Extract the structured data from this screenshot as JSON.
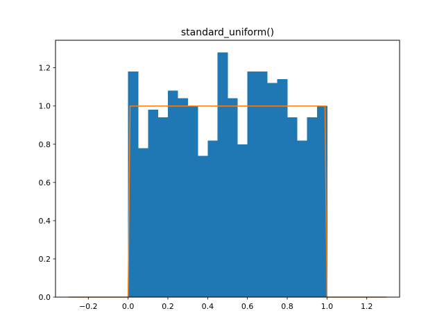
{
  "chart_data": {
    "type": "bar",
    "title": "standard_uniform()",
    "xlabel": "",
    "ylabel": "",
    "xlim": [
      -0.365,
      1.365
    ],
    "ylim": [
      0,
      1.344
    ],
    "grid": false,
    "xticks": [
      -0.2,
      0.0,
      0.2,
      0.4,
      0.6,
      0.8,
      1.0,
      1.2
    ],
    "xtick_labels": [
      "−0.2",
      "0.0",
      "0.2",
      "0.4",
      "0.6",
      "0.8",
      "1.0",
      "1.2"
    ],
    "yticks": [
      0.0,
      0.2,
      0.4,
      0.6,
      0.8,
      1.0,
      1.2
    ],
    "ytick_labels": [
      "0.0",
      "0.2",
      "0.4",
      "0.6",
      "0.8",
      "1.0",
      "1.2"
    ],
    "histogram": {
      "color": "#1f77b4",
      "bin_edges": [
        0.0,
        0.05,
        0.1,
        0.15,
        0.2,
        0.25,
        0.3,
        0.35,
        0.4,
        0.45,
        0.5,
        0.55,
        0.6,
        0.65,
        0.7,
        0.75,
        0.8,
        0.85,
        0.9,
        0.95,
        1.0
      ],
      "values": [
        1.18,
        0.78,
        0.98,
        0.94,
        1.08,
        1.04,
        1.0,
        0.74,
        0.82,
        1.28,
        1.04,
        0.8,
        1.18,
        1.18,
        1.12,
        1.14,
        0.94,
        0.82,
        0.94,
        1.0
      ]
    },
    "line": {
      "color": "#ff7f0e",
      "x": [
        -0.3,
        0.0,
        0.01,
        0.99,
        1.0,
        1.3
      ],
      "y": [
        0.0,
        0.0,
        1.0,
        1.0,
        0.0,
        0.0
      ]
    }
  }
}
